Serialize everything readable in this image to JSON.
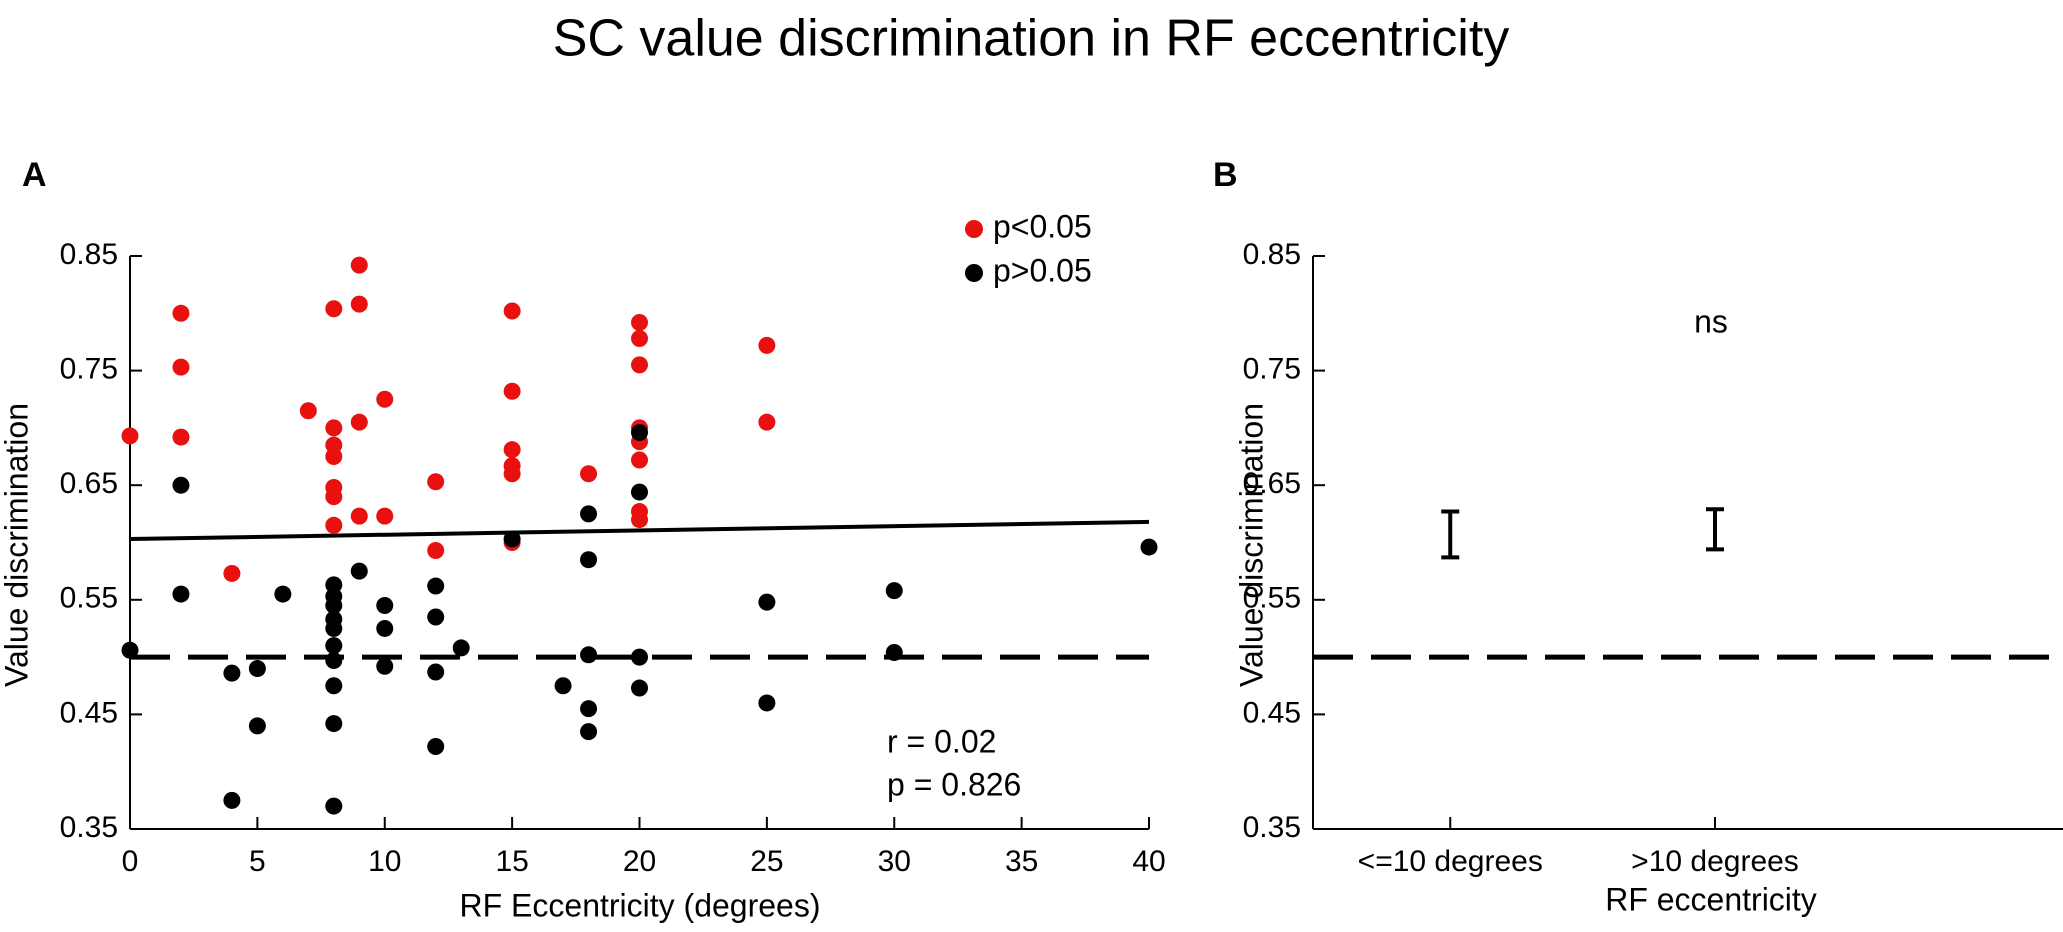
{
  "figure": {
    "title": "SC value discrimination in RF eccentricity"
  },
  "colors": {
    "significant": "#e8110f",
    "nonsignificant": "#000000"
  },
  "chart_data": [
    {
      "panel": "A",
      "type": "scatter",
      "xlabel": "RF Eccentricity (degrees)",
      "ylabel": "Value discrimination",
      "xlim": [
        0,
        40
      ],
      "ylim": [
        0.35,
        0.85
      ],
      "xticks": [
        0,
        5,
        10,
        15,
        20,
        25,
        30,
        35,
        40
      ],
      "yticks": [
        0.35,
        0.45,
        0.55,
        0.65,
        0.75,
        0.85
      ],
      "ytick_labels": [
        "0.35",
        "0.45",
        "0.55",
        "0.65",
        "0.75",
        "0.85"
      ],
      "legend": [
        "p<0.05",
        "p>0.05"
      ],
      "legend_position": "top-right",
      "annotations": [
        "r = 0.02",
        "p = 0.826"
      ],
      "reference_line": {
        "y": 0.5,
        "style": "dashed"
      },
      "fit_line": {
        "x": [
          0,
          40
        ],
        "y": [
          0.603,
          0.618
        ]
      },
      "series": [
        {
          "name": "p<0.05",
          "points": [
            [
              0,
              0.693
            ],
            [
              2,
              0.8
            ],
            [
              2,
              0.753
            ],
            [
              2,
              0.692
            ],
            [
              4,
              0.573
            ],
            [
              7,
              0.715
            ],
            [
              8,
              0.804
            ],
            [
              8,
              0.7
            ],
            [
              8,
              0.685
            ],
            [
              8,
              0.675
            ],
            [
              8,
              0.648
            ],
            [
              8,
              0.64
            ],
            [
              8,
              0.615
            ],
            [
              9,
              0.842
            ],
            [
              9,
              0.808
            ],
            [
              9,
              0.705
            ],
            [
              9,
              0.623
            ],
            [
              10,
              0.725
            ],
            [
              10,
              0.623
            ],
            [
              12,
              0.653
            ],
            [
              12,
              0.593
            ],
            [
              15,
              0.802
            ],
            [
              15,
              0.732
            ],
            [
              15,
              0.681
            ],
            [
              15,
              0.667
            ],
            [
              15,
              0.66
            ],
            [
              15,
              0.6
            ],
            [
              18,
              0.66
            ],
            [
              20,
              0.792
            ],
            [
              20,
              0.778
            ],
            [
              20,
              0.755
            ],
            [
              20,
              0.7
            ],
            [
              20,
              0.688
            ],
            [
              20,
              0.672
            ],
            [
              20,
              0.627
            ],
            [
              20,
              0.62
            ],
            [
              25,
              0.772
            ],
            [
              25,
              0.705
            ]
          ]
        },
        {
          "name": "p>0.05",
          "points": [
            [
              0,
              0.506
            ],
            [
              2,
              0.65
            ],
            [
              2,
              0.555
            ],
            [
              4,
              0.486
            ],
            [
              4,
              0.375
            ],
            [
              5,
              0.49
            ],
            [
              5,
              0.44
            ],
            [
              6,
              0.555
            ],
            [
              8,
              0.563
            ],
            [
              8,
              0.553
            ],
            [
              8,
              0.545
            ],
            [
              8,
              0.533
            ],
            [
              8,
              0.525
            ],
            [
              8,
              0.51
            ],
            [
              8,
              0.497
            ],
            [
              8,
              0.475
            ],
            [
              8,
              0.442
            ],
            [
              8,
              0.37
            ],
            [
              9,
              0.575
            ],
            [
              10,
              0.545
            ],
            [
              10,
              0.525
            ],
            [
              10,
              0.492
            ],
            [
              12,
              0.562
            ],
            [
              12,
              0.535
            ],
            [
              12,
              0.487
            ],
            [
              12,
              0.422
            ],
            [
              13,
              0.508
            ],
            [
              15,
              0.603
            ],
            [
              17,
              0.475
            ],
            [
              18,
              0.625
            ],
            [
              18,
              0.585
            ],
            [
              18,
              0.502
            ],
            [
              18,
              0.455
            ],
            [
              18,
              0.435
            ],
            [
              20,
              0.696
            ],
            [
              20,
              0.644
            ],
            [
              20,
              0.5
            ],
            [
              20,
              0.473
            ],
            [
              25,
              0.548
            ],
            [
              25,
              0.46
            ],
            [
              30,
              0.558
            ],
            [
              30,
              0.504
            ],
            [
              40,
              0.596
            ]
          ]
        }
      ]
    },
    {
      "panel": "B",
      "type": "errorbar",
      "xlabel": "RF eccentricity",
      "ylabel": "Value discrimination",
      "ylim": [
        0.35,
        0.85
      ],
      "yticks": [
        0.35,
        0.45,
        0.55,
        0.65,
        0.75,
        0.85
      ],
      "ytick_labels": [
        "0.35",
        "0.45",
        "0.55",
        "0.65",
        "0.75",
        "0.85"
      ],
      "categories": [
        "<=10 degrees",
        ">10 degrees"
      ],
      "lower": [
        0.587,
        0.594
      ],
      "upper": [
        0.627,
        0.629
      ],
      "annotation": "ns",
      "reference_line": {
        "y": 0.5,
        "style": "dashed"
      }
    }
  ]
}
